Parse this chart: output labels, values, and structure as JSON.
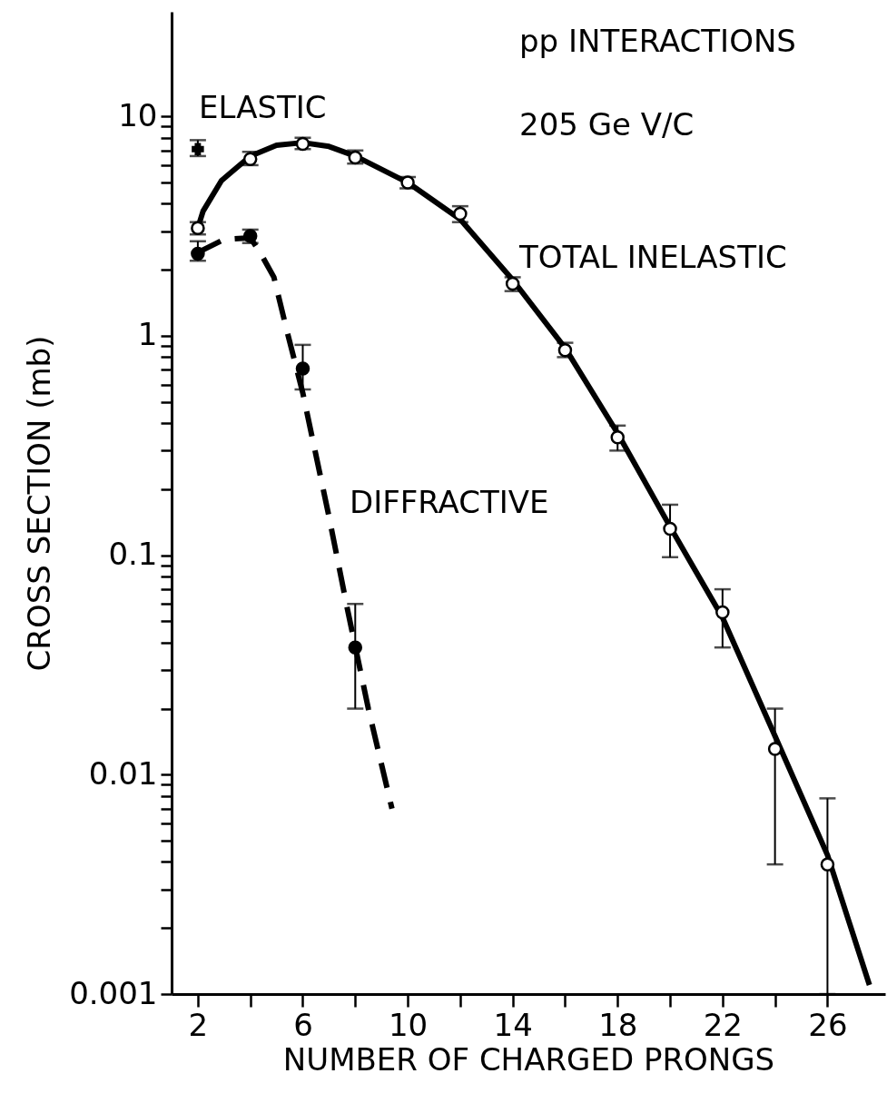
{
  "chart_data": {
    "type": "scatter",
    "xlabel": "NUMBER OF CHARGED PRONGS",
    "ylabel": "CROSS SECTION (mb)",
    "annotations": [
      "pp INTERACTIONS",
      "205 Ge V/C",
      "ELASTIC",
      "TOTAL INELASTIC",
      "DIFFRACTIVE"
    ],
    "log": "y",
    "grid": false,
    "xlim": [
      1,
      28.2
    ],
    "ylim": [
      0.001,
      30
    ],
    "xticks": [
      2,
      {
        "value": 4,
        "label": null
      },
      6,
      {
        "value": 8,
        "label": null
      },
      10,
      {
        "value": 12,
        "label": null
      },
      14,
      {
        "value": 16,
        "label": null
      },
      18,
      {
        "value": 20,
        "label": null
      },
      22,
      {
        "value": 24,
        "label": null
      },
      26
    ],
    "yticks": [
      0.001,
      {
        "value": 0.002,
        "label": null
      },
      {
        "value": 0.003,
        "label": null
      },
      {
        "value": 0.004,
        "label": null
      },
      {
        "value": 0.005,
        "label": null
      },
      {
        "value": 0.006,
        "label": null
      },
      {
        "value": 0.007,
        "label": null
      },
      {
        "value": 0.008,
        "label": null
      },
      {
        "value": 0.009,
        "label": null
      },
      0.01,
      {
        "value": 0.02,
        "label": null
      },
      {
        "value": 0.03,
        "label": null
      },
      {
        "value": 0.04,
        "label": null
      },
      {
        "value": 0.05,
        "label": null
      },
      {
        "value": 0.06,
        "label": null
      },
      {
        "value": 0.07,
        "label": null
      },
      {
        "value": 0.08,
        "label": null
      },
      {
        "value": 0.09,
        "label": null
      },
      0.1,
      {
        "value": 0.2,
        "label": null
      },
      {
        "value": 0.3,
        "label": null
      },
      {
        "value": 0.4,
        "label": null
      },
      {
        "value": 0.5,
        "label": null
      },
      {
        "value": 0.6,
        "label": null
      },
      {
        "value": 0.7,
        "label": null
      },
      {
        "value": 0.8,
        "label": null
      },
      {
        "value": 0.9,
        "label": null
      },
      1,
      {
        "value": 2,
        "label": null
      },
      {
        "value": 3,
        "label": null
      },
      {
        "value": 4,
        "label": null
      },
      {
        "value": 5,
        "label": null
      },
      {
        "value": 6,
        "label": null
      },
      {
        "value": 7,
        "label": null
      },
      {
        "value": 8,
        "label": null
      },
      {
        "value": 9,
        "label": null
      },
      10
    ],
    "series": [
      {
        "type": "line",
        "color": "#000000",
        "line_style": "solid",
        "x": [
          2,
          2.2,
          2.9,
          4,
          5,
          6,
          7,
          8,
          10,
          12,
          14,
          16,
          18,
          20,
          22,
          24,
          26,
          27.6
        ],
        "values": [
          3.1,
          3.7,
          5.1,
          6.6,
          7.4,
          7.6,
          7.3,
          6.6,
          5.0,
          3.4,
          1.8,
          0.88,
          0.36,
          0.135,
          0.052,
          0.015,
          0.0043,
          0.0011
        ]
      },
      {
        "type": "line",
        "color": "#000000",
        "line_style": "dashed",
        "x": [
          2,
          3,
          4,
          4.4,
          4.9,
          5.4,
          6,
          7,
          7.7,
          8.5,
          9.4
        ],
        "values": [
          2.4,
          2.75,
          2.8,
          2.37,
          1.85,
          1.05,
          0.55,
          0.15,
          0.057,
          0.02,
          0.007
        ]
      },
      {
        "color": "#ffffff",
        "marker": "circle",
        "x": [
          2,
          4,
          6,
          8,
          10,
          12,
          14,
          16,
          18,
          20,
          22,
          24,
          26
        ],
        "values": [
          3.1,
          6.4,
          7.5,
          6.5,
          5.0,
          3.6,
          1.73,
          0.86,
          0.345,
          0.132,
          0.055,
          0.0131,
          0.0039
        ],
        "errors": [
          [
            2.9,
            3.3
          ],
          [
            6.0,
            6.9
          ],
          [
            7.1,
            8.0
          ],
          [
            6.1,
            7.0
          ],
          [
            4.7,
            5.3
          ],
          [
            3.3,
            3.9
          ],
          [
            1.6,
            1.85
          ],
          [
            0.8,
            0.93
          ],
          [
            0.3,
            0.39
          ],
          [
            0.098,
            0.17
          ],
          [
            0.038,
            0.07
          ],
          [
            0.0039,
            0.02
          ],
          [
            0.001,
            0.0078
          ]
        ]
      },
      {
        "color": "#000000",
        "marker": "circle",
        "x": [
          2,
          4,
          6,
          8
        ],
        "values": [
          2.37,
          2.85,
          0.71,
          0.038
        ],
        "errors": [
          [
            2.2,
            2.7
          ],
          [
            2.65,
            3.05
          ],
          [
            0.57,
            0.91
          ],
          [
            0.02,
            0.06
          ]
        ]
      },
      {
        "color": "#000000",
        "marker": "cross",
        "x": [
          2
        ],
        "values": [
          7.1
        ],
        "errors": [
          [
            6.6,
            7.8
          ]
        ]
      }
    ]
  }
}
